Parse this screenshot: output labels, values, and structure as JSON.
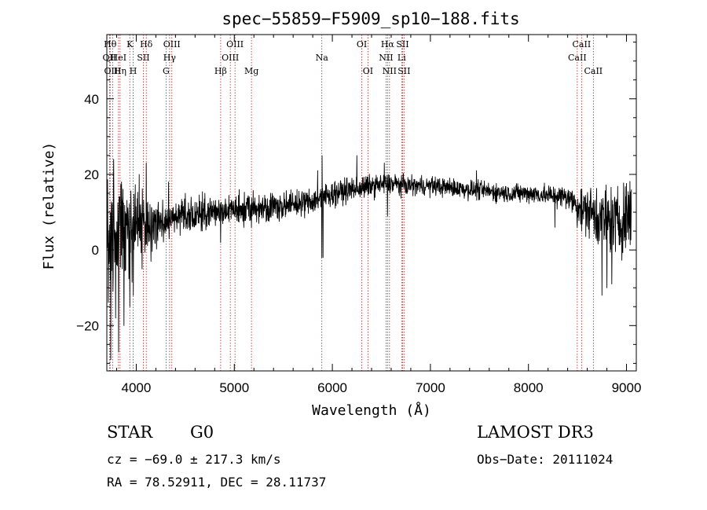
{
  "chart_data": {
    "type": "line",
    "title": "spec−55859−F5909_sp10−188.fits",
    "xlabel": "Wavelength (Å)",
    "ylabel": "Flux (relative)",
    "xlim": [
      3700,
      9100
    ],
    "ylim": [
      -32,
      57
    ],
    "xticks": [
      4000,
      5000,
      6000,
      7000,
      8000,
      9000
    ],
    "xtick_labels": [
      "4000",
      "5000",
      "6000",
      "7000",
      "8000",
      "9000"
    ],
    "yticks": [
      -20,
      0,
      20,
      40
    ],
    "ytick_labels": [
      "−20",
      "0",
      "20",
      "40"
    ],
    "grid": false,
    "lines": [
      {
        "label": "Hθ",
        "x": 3734,
        "row": 0
      },
      {
        "label": "OII",
        "x": 3727,
        "row": 1
      },
      {
        "label": "OIII",
        "x": 3760,
        "row": 2
      },
      {
        "label": "HeI",
        "x": 3819,
        "row": 1
      },
      {
        "label": "Hη",
        "x": 3835,
        "row": 2
      },
      {
        "label": "K",
        "x": 3934,
        "row": 0
      },
      {
        "label": "H",
        "x": 3969,
        "row": 2
      },
      {
        "label": "SII",
        "x": 4072,
        "row": 1
      },
      {
        "label": "Hδ",
        "x": 4102,
        "row": 0
      },
      {
        "label": "G",
        "x": 4304,
        "row": 2
      },
      {
        "label": "Hγ",
        "x": 4340,
        "row": 1
      },
      {
        "label": "OIII",
        "x": 4363,
        "row": 0
      },
      {
        "label": "Hβ",
        "x": 4861,
        "row": 2
      },
      {
        "label": "OIII",
        "x": 4959,
        "row": 1
      },
      {
        "label": "OIII",
        "x": 5007,
        "row": 0
      },
      {
        "label": "Mg",
        "x": 5175,
        "row": 2
      },
      {
        "label": "Na",
        "x": 5893,
        "row": 1
      },
      {
        "label": "OI",
        "x": 6300,
        "row": 0
      },
      {
        "label": "OI",
        "x": 6363,
        "row": 2
      },
      {
        "label": "NII",
        "x": 6548,
        "row": 1
      },
      {
        "label": "Hα",
        "x": 6563,
        "row": 0
      },
      {
        "label": "NII",
        "x": 6583,
        "row": 2
      },
      {
        "label": "Li",
        "x": 6707,
        "row": 1
      },
      {
        "label": "SII",
        "x": 6716,
        "row": 0
      },
      {
        "label": "SII",
        "x": 6731,
        "row": 2
      },
      {
        "label": "CaII",
        "x": 8498,
        "row": 1
      },
      {
        "label": "CaII",
        "x": 8542,
        "row": 0
      },
      {
        "label": "CaII",
        "x": 8662,
        "row": 2
      }
    ],
    "continuum_knots": {
      "x": [
        3700,
        3800,
        3900,
        4000,
        4100,
        4200,
        4300,
        4400,
        4600,
        4800,
        5000,
        5200,
        5400,
        5600,
        5800,
        5900,
        6000,
        6200,
        6400,
        6600,
        6800,
        7000,
        7200,
        7400,
        7600,
        7800,
        8000,
        8200,
        8400,
        8450,
        8550,
        8650,
        8700,
        8800,
        8900,
        9000,
        9050
      ],
      "y": [
        5,
        4,
        5,
        6,
        7,
        7,
        8,
        8.5,
        9,
        10,
        10.5,
        11,
        11.5,
        12,
        13,
        14,
        15,
        16,
        17,
        17.5,
        17,
        17,
        16.5,
        16,
        15.5,
        15,
        15,
        14.5,
        14,
        13,
        11,
        10,
        9,
        8,
        7,
        9,
        10
      ]
    },
    "noise_knots": {
      "x": [
        3700,
        3800,
        3900,
        4000,
        4100,
        4200,
        4400,
        4800,
        5500,
        6000,
        6800,
        8000,
        8450,
        8700,
        9050
      ],
      "y": [
        10,
        10,
        8,
        6,
        5,
        4,
        3,
        2.5,
        2.2,
        2,
        1.5,
        1.5,
        2,
        5,
        6
      ]
    },
    "features": [
      {
        "x": 3740,
        "y": -29
      },
      {
        "x": 3770,
        "y": 24
      },
      {
        "x": 3790,
        "y": -18
      },
      {
        "x": 3820,
        "y": -27
      },
      {
        "x": 3850,
        "y": 18
      },
      {
        "x": 3875,
        "y": -20
      },
      {
        "x": 3934,
        "y": -15
      },
      {
        "x": 3969,
        "y": -12
      },
      {
        "x": 4030,
        "y": 20
      },
      {
        "x": 4060,
        "y": -5
      },
      {
        "x": 4102,
        "y": 23
      },
      {
        "x": 4150,
        "y": -3
      },
      {
        "x": 4330,
        "y": 18
      },
      {
        "x": 4500,
        "y": 15
      },
      {
        "x": 4560,
        "y": 14
      },
      {
        "x": 4700,
        "y": 15
      },
      {
        "x": 4861,
        "y": 2
      },
      {
        "x": 5050,
        "y": 16
      },
      {
        "x": 5175,
        "y": 6
      },
      {
        "x": 5850,
        "y": 21
      },
      {
        "x": 5893,
        "y": -2
      },
      {
        "x": 5895,
        "y": 25
      },
      {
        "x": 5905,
        "y": -2
      },
      {
        "x": 6200,
        "y": 19
      },
      {
        "x": 6250,
        "y": 25
      },
      {
        "x": 6563,
        "y": 9
      },
      {
        "x": 6530,
        "y": 23
      },
      {
        "x": 6640,
        "y": 20
      },
      {
        "x": 7470,
        "y": 21
      },
      {
        "x": 8270,
        "y": 6
      },
      {
        "x": 8498,
        "y": 6
      },
      {
        "x": 8542,
        "y": 5
      },
      {
        "x": 8662,
        "y": 8
      },
      {
        "x": 8750,
        "y": -12
      },
      {
        "x": 8800,
        "y": -10
      },
      {
        "x": 8850,
        "y": -9
      },
      {
        "x": 8880,
        "y": 14
      },
      {
        "x": 8960,
        "y": 0
      },
      {
        "x": 9050,
        "y": 16
      }
    ]
  },
  "info": {
    "object_class": "STAR",
    "subclass": "G0",
    "survey": "LAMOST DR3",
    "redshift": "cz = −69.0 ± 217.3 km/s",
    "obs_date": "Obs−Date: 20111024",
    "coords": "RA =  78.52911, DEC =  28.11737"
  }
}
